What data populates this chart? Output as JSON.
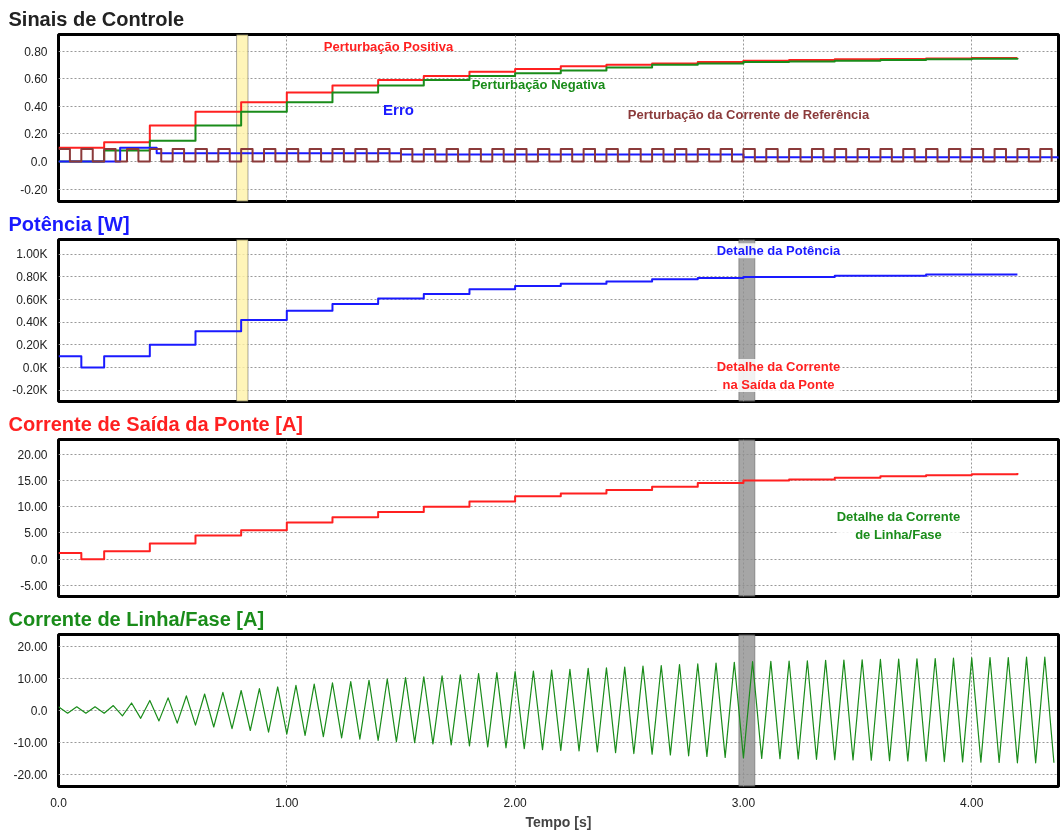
{
  "chart_data": [
    {
      "type": "step",
      "title": "Sinais de Controle",
      "xlim": [
        0,
        4.38
      ],
      "xticks": [
        0,
        1,
        2,
        3,
        4
      ],
      "ylim": [
        -0.29,
        0.92
      ],
      "yticks": [
        {
          "value": -0.2,
          "label": "-0.20"
        },
        {
          "value": 0,
          "label": "0.0"
        },
        {
          "value": 0.2,
          "label": "0.20"
        },
        {
          "value": 0.4,
          "label": "0.40"
        },
        {
          "value": 0.6,
          "label": "0.60"
        },
        {
          "value": 0.8,
          "label": "0.80"
        }
      ],
      "grid": true,
      "tick_labels": "y",
      "bands": [
        {
          "axis": "x",
          "from": 0.78,
          "to": 0.83,
          "color": "#fff2a8"
        }
      ],
      "series": [
        {
          "name": "Perturbação Positiva",
          "color": "#ff2020",
          "x": [
            0,
            0.2,
            0.4,
            0.6,
            0.8,
            1.0,
            1.2,
            1.4,
            1.6,
            1.8,
            2.0,
            2.2,
            2.4,
            2.6,
            2.8,
            3.0,
            3.2,
            3.4,
            3.6,
            3.8,
            4.0,
            4.2
          ],
          "values": [
            0.1,
            0.14,
            0.26,
            0.36,
            0.43,
            0.5,
            0.55,
            0.59,
            0.62,
            0.65,
            0.67,
            0.69,
            0.7,
            0.71,
            0.72,
            0.73,
            0.735,
            0.74,
            0.743,
            0.746,
            0.749,
            0.75
          ]
        },
        {
          "name": "Perturbação Negativa",
          "color": "#1a8c1a",
          "x": [
            0,
            0.2,
            0.4,
            0.6,
            0.8,
            1.0,
            1.2,
            1.4,
            1.6,
            1.8,
            2.0,
            2.2,
            2.4,
            2.6,
            2.8,
            3.0,
            3.2,
            3.4,
            3.6,
            3.8,
            4.0,
            4.2
          ],
          "values": [
            0,
            0.08,
            0.15,
            0.26,
            0.36,
            0.43,
            0.5,
            0.55,
            0.59,
            0.62,
            0.64,
            0.66,
            0.68,
            0.7,
            0.71,
            0.72,
            0.725,
            0.73,
            0.735,
            0.74,
            0.745,
            0.75
          ]
        },
        {
          "name": "Erro",
          "color": "#1a1aff",
          "x": [
            0,
            0.27,
            0.43,
            1.5,
            3.0,
            4.38
          ],
          "values": [
            0,
            0.1,
            0.06,
            0.05,
            0.03,
            0.02
          ]
        },
        {
          "name": "Perturbação da Corrente de Referência",
          "color": "#8b3a3a",
          "x": [
            0,
            0.05,
            0.1,
            0.15,
            0.2,
            0.25,
            0.3,
            0.35,
            0.4,
            0.45,
            0.5,
            0.55,
            0.6,
            0.65,
            0.7,
            0.75,
            0.8,
            0.85,
            0.9,
            0.95,
            1.0,
            1.05,
            1.1,
            1.15,
            1.2,
            1.25,
            1.3,
            1.35,
            1.4,
            1.45,
            1.5,
            1.55,
            1.6,
            1.65,
            1.7,
            1.75,
            1.8,
            1.85,
            1.9,
            1.95,
            2.0,
            2.05,
            2.1,
            2.15,
            2.2,
            2.25,
            2.3,
            2.35,
            2.4,
            2.45,
            2.5,
            2.55,
            2.6,
            2.65,
            2.7,
            2.75,
            2.8,
            2.85,
            2.9,
            2.95,
            3.0,
            3.05,
            3.1,
            3.15,
            3.2,
            3.25,
            3.3,
            3.35,
            3.4,
            3.45,
            3.5,
            3.55,
            3.6,
            3.65,
            3.7,
            3.75,
            3.8,
            3.85,
            3.9,
            3.95,
            4.0,
            4.05,
            4.1,
            4.15,
            4.2,
            4.25,
            4.3,
            4.35
          ],
          "values": [
            0.09,
            0,
            0.09,
            0,
            0.09,
            0,
            0.09,
            0,
            0.09,
            0,
            0.09,
            0,
            0.09,
            0,
            0.09,
            0,
            0.09,
            0,
            0.09,
            0,
            0.09,
            0,
            0.09,
            0,
            0.09,
            0,
            0.09,
            0,
            0.09,
            0,
            0.09,
            0,
            0.09,
            0,
            0.09,
            0,
            0.09,
            0,
            0.09,
            0,
            0.09,
            0,
            0.09,
            0,
            0.09,
            0,
            0.09,
            0,
            0.09,
            0,
            0.09,
            0,
            0.09,
            0,
            0.09,
            0,
            0.09,
            0,
            0.09,
            0,
            0.09,
            0,
            0.09,
            0,
            0.09,
            0,
            0.09,
            0,
            0.09,
            0,
            0.09,
            0,
            0.09,
            0,
            0.09,
            0,
            0.09,
            0,
            0.09,
            0,
            0.09,
            0,
            0.09,
            0,
            0.09,
            0,
            0.09,
            0
          ]
        }
      ]
    },
    {
      "type": "step",
      "title": "Potência [W]",
      "xlim": [
        0,
        4.38
      ],
      "xticks": [
        0,
        1,
        2,
        3,
        4
      ],
      "ylim": [
        -300,
        1130
      ],
      "yticks": [
        {
          "value": -200,
          "label": "-0.20K"
        },
        {
          "value": 0,
          "label": "0.0K"
        },
        {
          "value": 200,
          "label": "0.20K"
        },
        {
          "value": 400,
          "label": "0.40K"
        },
        {
          "value": 600,
          "label": "0.60K"
        },
        {
          "value": 800,
          "label": "0.80K"
        },
        {
          "value": 1000,
          "label": "1.00K"
        }
      ],
      "grid": true,
      "tick_labels": "y",
      "annotations": [
        "Detalhe da Potência",
        "Detalhe da Corrente\nna Saída da Ponte"
      ],
      "bands": [
        {
          "axis": "x",
          "from": 0.78,
          "to": 0.83,
          "color": "#fff2a8"
        },
        {
          "axis": "x",
          "from": 2.98,
          "to": 3.05,
          "color": "#909090"
        }
      ],
      "series": [
        {
          "color": "#1a1aff",
          "x": [
            0,
            0.1,
            0.2,
            0.4,
            0.6,
            0.8,
            1.0,
            1.2,
            1.4,
            1.6,
            1.8,
            2.0,
            2.2,
            2.4,
            2.6,
            2.8,
            3.0,
            3.2,
            3.4,
            3.6,
            3.8,
            4.0,
            4.2
          ],
          "values": [
            100,
            0,
            100,
            200,
            320,
            420,
            500,
            560,
            610,
            650,
            690,
            720,
            740,
            760,
            780,
            790,
            800,
            800,
            810,
            810,
            820,
            820,
            820
          ]
        }
      ]
    },
    {
      "type": "step",
      "title": "Corrente de Saída da Ponte [A]",
      "xlim": [
        0,
        4.38
      ],
      "xticks": [
        0,
        1,
        2,
        3,
        4
      ],
      "ylim": [
        -7.1,
        22.8
      ],
      "yticks": [
        {
          "value": -5,
          "label": "-5.00"
        },
        {
          "value": 0,
          "label": "0.0"
        },
        {
          "value": 5,
          "label": "5.00"
        },
        {
          "value": 10,
          "label": "10.00"
        },
        {
          "value": 15,
          "label": "15.00"
        },
        {
          "value": 20,
          "label": "20.00"
        }
      ],
      "grid": true,
      "tick_labels": "y",
      "annotations": [
        "Detalhe da Corrente\nde Linha/Fase"
      ],
      "bands": [
        {
          "axis": "x",
          "from": 2.98,
          "to": 3.05,
          "color": "#909090"
        }
      ],
      "series": [
        {
          "color": "#ff2020",
          "x": [
            0,
            0.1,
            0.2,
            0.4,
            0.6,
            0.8,
            1.0,
            1.2,
            1.4,
            1.6,
            1.8,
            2.0,
            2.2,
            2.4,
            2.6,
            2.8,
            3.0,
            3.2,
            3.4,
            3.6,
            3.8,
            4.0,
            4.2
          ],
          "values": [
            1.2,
            0,
            1.5,
            3,
            4.5,
            5.5,
            7,
            8,
            9,
            10,
            11,
            12,
            12.5,
            13.2,
            13.8,
            14.5,
            15,
            15.2,
            15.5,
            15.8,
            16,
            16.2,
            16.4
          ]
        }
      ]
    },
    {
      "type": "line",
      "title": "Corrente de Linha/Fase [A]",
      "xlabel": "Tempo [s]",
      "xlim": [
        0,
        4.38
      ],
      "xticks": [
        {
          "value": 0,
          "label": "0.0"
        },
        {
          "value": 1,
          "label": "1.00"
        },
        {
          "value": 2,
          "label": "2.00"
        },
        {
          "value": 3,
          "label": "3.00"
        },
        {
          "value": 4,
          "label": "4.00"
        }
      ],
      "ylim": [
        -23.9,
        23.6
      ],
      "yticks": [
        {
          "value": -20,
          "label": "-20.00"
        },
        {
          "value": -10,
          "label": "-10.00"
        },
        {
          "value": 0,
          "label": "0.0"
        },
        {
          "value": 10,
          "label": "10.00"
        },
        {
          "value": 20,
          "label": "20.00"
        }
      ],
      "grid": true,
      "bands": [
        {
          "axis": "x",
          "from": 2.98,
          "to": 3.05,
          "color": "#909090"
        }
      ],
      "series": [
        {
          "color": "#1a8c1a",
          "x": [
            0,
            0.04,
            0.08,
            0.12,
            0.16,
            0.2,
            0.24,
            0.28,
            0.32,
            0.36,
            0.4,
            0.44,
            0.48,
            0.52,
            0.56,
            0.6,
            0.64,
            0.68,
            0.72,
            0.76,
            0.8,
            0.84,
            0.88,
            0.92,
            0.96,
            1.0,
            1.04,
            1.08,
            1.12,
            1.16,
            1.2,
            1.24,
            1.28,
            1.32,
            1.36,
            1.4,
            1.44,
            1.48,
            1.52,
            1.56,
            1.6,
            1.64,
            1.68,
            1.72,
            1.76,
            1.8,
            1.84,
            1.88,
            1.92,
            1.96,
            2.0,
            2.04,
            2.08,
            2.12,
            2.16,
            2.2,
            2.24,
            2.28,
            2.32,
            2.36,
            2.4,
            2.44,
            2.48,
            2.52,
            2.56,
            2.6,
            2.64,
            2.68,
            2.72,
            2.76,
            2.8,
            2.84,
            2.88,
            2.92,
            2.96,
            3.0,
            3.04,
            3.08,
            3.12,
            3.16,
            3.2,
            3.24,
            3.28,
            3.32,
            3.36,
            3.4,
            3.44,
            3.48,
            3.52,
            3.56,
            3.6,
            3.64,
            3.68,
            3.72,
            3.76,
            3.8,
            3.84,
            3.88,
            3.92,
            3.96,
            4.0,
            4.04,
            4.08,
            4.12,
            4.16,
            4.2,
            4.24,
            4.28,
            4.32,
            4.36
          ],
          "values": [
            1,
            -1,
            1,
            -1,
            1,
            -1,
            1.4,
            -1.8,
            2.2,
            -2.6,
            3,
            -3.4,
            3.8,
            -4.1,
            4.4,
            -4.7,
            5,
            -5.3,
            5.5,
            -5.8,
            6.1,
            -6.4,
            6.7,
            -6.9,
            7.2,
            -7.5,
            7.7,
            -7.9,
            8.1,
            -8.3,
            8.5,
            -8.7,
            8.9,
            -9.1,
            9.3,
            -9.5,
            9.7,
            -9.9,
            10.1,
            -10.2,
            10.4,
            -10.6,
            10.7,
            -10.9,
            11,
            -11.2,
            11.4,
            -11.5,
            11.7,
            -11.8,
            12,
            -12.1,
            12.2,
            -12.4,
            12.5,
            -12.6,
            12.7,
            -12.8,
            13,
            -13.1,
            13.2,
            -13.3,
            13.4,
            -13.6,
            13.7,
            -13.8,
            13.9,
            -14,
            14.2,
            -14.3,
            14.4,
            -14.5,
            14.7,
            -14.8,
            14.9,
            -15,
            15.1,
            -15.1,
            15.2,
            -15.2,
            15.3,
            -15.3,
            15.4,
            -15.4,
            15.5,
            -15.5,
            15.6,
            -15.6,
            15.7,
            -15.7,
            15.8,
            -15.8,
            15.9,
            -15.9,
            16,
            -16,
            16.1,
            -16.1,
            16.2,
            -16.2,
            16.3,
            -16.3,
            16.4,
            -16.4,
            16.4,
            -16.5,
            16.5,
            -16.5,
            16.5,
            -16.5
          ]
        }
      ]
    }
  ]
}
